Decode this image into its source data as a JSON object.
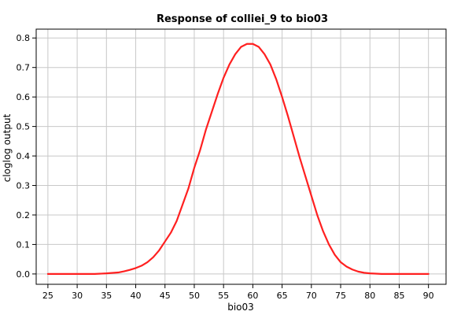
{
  "chart_data": {
    "type": "line",
    "title": "Response of colliei_9 to bio03",
    "xlabel": "bio03",
    "ylabel": "cloglog output",
    "xlim": [
      23,
      93
    ],
    "ylim": [
      -0.035,
      0.83
    ],
    "x_ticks": [
      25,
      30,
      35,
      40,
      45,
      50,
      55,
      60,
      65,
      70,
      75,
      80,
      85,
      90
    ],
    "y_ticks": [
      0.0,
      0.1,
      0.2,
      0.3,
      0.4,
      0.5,
      0.6,
      0.7,
      0.8
    ],
    "grid": true,
    "legend": "none",
    "series": [
      {
        "color": "#ff2020",
        "x": [
          25,
          30,
          33,
          35,
          37,
          38,
          39,
          40,
          41,
          42,
          43,
          44,
          45,
          46,
          47,
          48,
          49,
          50,
          51,
          52,
          53,
          54,
          55,
          56,
          57,
          58,
          59,
          60,
          61,
          62,
          63,
          64,
          65,
          66,
          67,
          68,
          69,
          70,
          71,
          72,
          73,
          74,
          75,
          76,
          77,
          78,
          79,
          80,
          81,
          82,
          83,
          85,
          90
        ],
        "y": [
          0.0,
          0.0,
          0.0,
          0.002,
          0.005,
          0.009,
          0.014,
          0.02,
          0.028,
          0.04,
          0.057,
          0.08,
          0.11,
          0.14,
          0.18,
          0.235,
          0.29,
          0.36,
          0.42,
          0.49,
          0.55,
          0.61,
          0.665,
          0.71,
          0.745,
          0.77,
          0.78,
          0.78,
          0.77,
          0.745,
          0.71,
          0.66,
          0.6,
          0.535,
          0.465,
          0.395,
          0.33,
          0.265,
          0.2,
          0.145,
          0.1,
          0.065,
          0.04,
          0.025,
          0.015,
          0.008,
          0.004,
          0.002,
          0.001,
          0.0,
          0.0,
          0.0,
          0.0
        ]
      }
    ]
  }
}
